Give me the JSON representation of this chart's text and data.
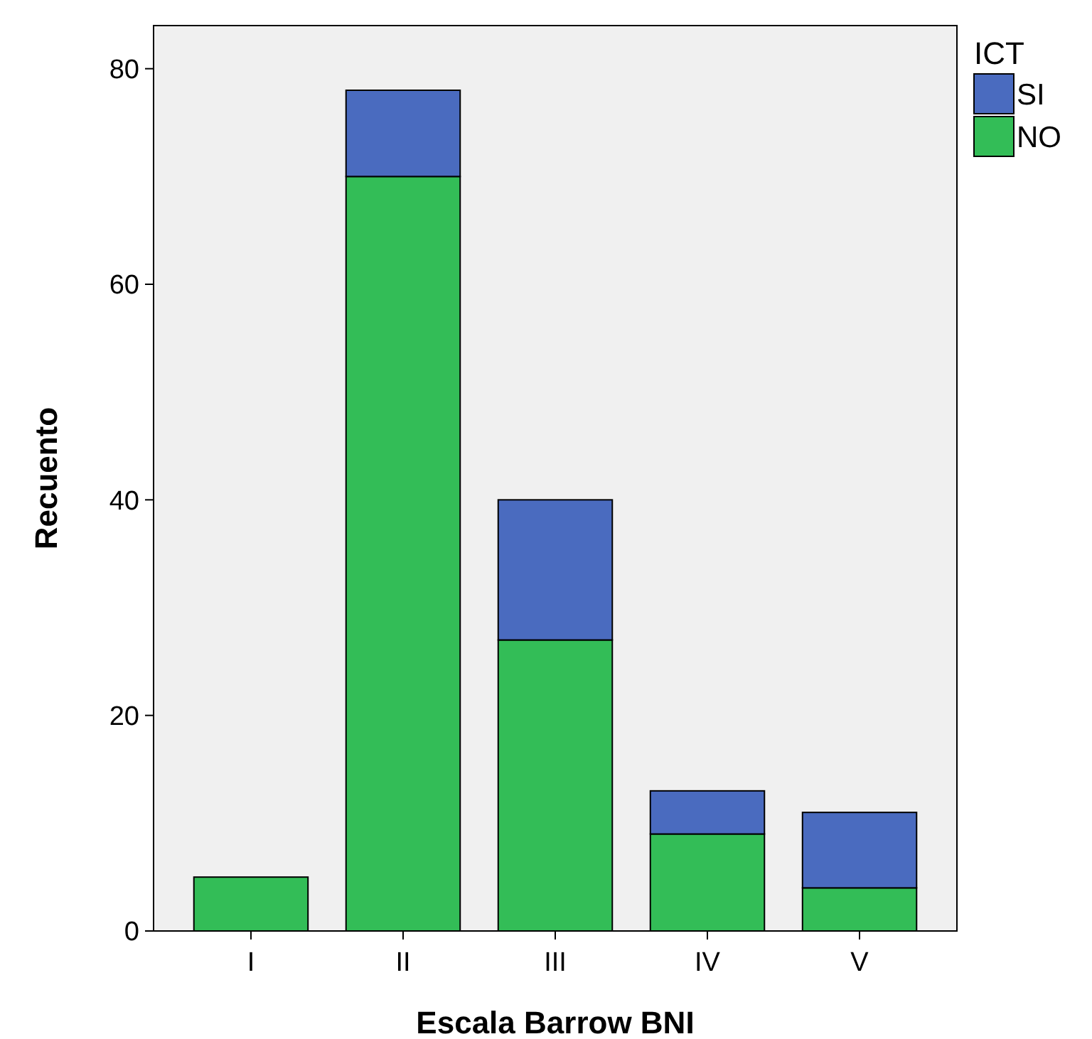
{
  "chart_data": {
    "type": "bar",
    "stacked": true,
    "xlabel": "Escala Barrow BNI",
    "ylabel": "Recuento",
    "legend_title": "ICT",
    "legend": "top right",
    "categories": [
      "I",
      "II",
      "III",
      "IV",
      "V"
    ],
    "series": [
      {
        "name": "NO",
        "color": "#33bd57",
        "values": [
          5,
          70,
          27,
          9,
          4
        ]
      },
      {
        "name": "SI",
        "color": "#4a6bbf",
        "values": [
          0,
          8,
          13,
          4,
          7
        ]
      }
    ],
    "ylim": [
      0,
      84
    ],
    "yticks": [
      0,
      20,
      40,
      60,
      80
    ]
  }
}
